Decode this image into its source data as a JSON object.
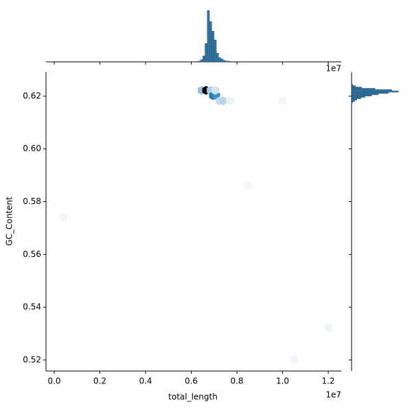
{
  "chart_data": {
    "type": "hexbin",
    "x_label": "total_length",
    "y_label": "GC_Content",
    "x_offset_label": "1e7",
    "xlim": [
      -360000,
      12570000
    ],
    "xticks": [
      {
        "value": 0,
        "label": "0.0"
      },
      {
        "value": 2000000,
        "label": "0.2"
      },
      {
        "value": 4000000,
        "label": "0.4"
      },
      {
        "value": 6000000,
        "label": "0.6"
      },
      {
        "value": 8000000,
        "label": "0.8"
      },
      {
        "value": 10000000,
        "label": "1.0"
      },
      {
        "value": 12000000,
        "label": "1.2"
      }
    ],
    "ylim": [
      0.5158,
      0.6291
    ],
    "yticks": [
      {
        "value": 0.52,
        "label": "0.52"
      },
      {
        "value": 0.54,
        "label": "0.54"
      },
      {
        "value": 0.56,
        "label": "0.56"
      },
      {
        "value": 0.58,
        "label": "0.58"
      },
      {
        "value": 0.6,
        "label": "0.60"
      },
      {
        "value": 0.62,
        "label": "0.62"
      }
    ],
    "color": "#1f77b4",
    "hexes": {
      "x": [
        6450000,
        6650000,
        6850000,
        6950000,
        7100000,
        7250000,
        7400000,
        7050000,
        7700000,
        8500000,
        10000000,
        400000,
        12000000,
        10500000
      ],
      "y": [
        0.6222,
        0.6222,
        0.6222,
        0.6202,
        0.6202,
        0.6182,
        0.6182,
        0.6222,
        0.6182,
        0.5862,
        0.6182,
        0.5742,
        0.5322,
        0.5202
      ],
      "counts": [
        15,
        60,
        12,
        35,
        30,
        8,
        10,
        6,
        2,
        1,
        1,
        1,
        1,
        1
      ]
    },
    "top_hist": {
      "bins": [
        6300000,
        6400000,
        6500000,
        6600000,
        6700000,
        6800000,
        6900000,
        7000000,
        7100000,
        7200000,
        7300000,
        7400000,
        7500000,
        7600000,
        7700000
      ],
      "counts": [
        1,
        3,
        8,
        25,
        70,
        55,
        42,
        30,
        12,
        6,
        4,
        2,
        1,
        1
      ],
      "ylim": [
        0,
        75
      ]
    },
    "right_hist": {
      "bins": [
        0.6175,
        0.618,
        0.6185,
        0.619,
        0.6195,
        0.62,
        0.6205,
        0.621,
        0.6215,
        0.622,
        0.6225,
        0.623,
        0.6235,
        0.624,
        0.6245
      ],
      "counts": [
        2,
        5,
        8,
        14,
        20,
        30,
        40,
        55,
        70,
        60,
        35,
        15,
        6,
        2
      ],
      "xlim": [
        0,
        80
      ]
    },
    "hist_color": "#3274a1"
  }
}
